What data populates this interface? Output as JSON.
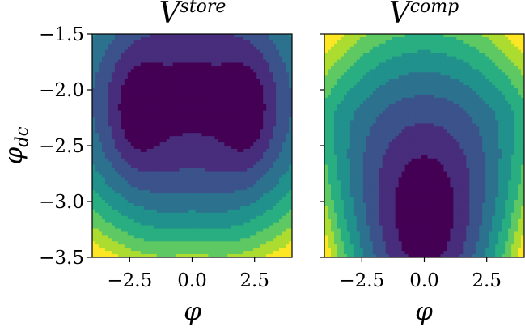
{
  "chart_data": [
    {
      "type": "heatmap",
      "subtype": "filled-contour",
      "title": {
        "base": "V",
        "sup": "store"
      },
      "xlabel": "φ",
      "ylabel": "φ",
      "ylabel_sub": "dc",
      "xlim": [
        -4.0,
        4.0
      ],
      "ylim": [
        -3.5,
        -1.5
      ],
      "xticks": [
        -2.5,
        0.0,
        2.5
      ],
      "xtick_labels": [
        "−2.5",
        "0.0",
        "2.5"
      ],
      "yticks": [
        -1.5,
        -2.0,
        -2.5,
        -3.0,
        -3.5
      ],
      "ytick_labels": [
        "−1.5",
        "−2.0",
        "−2.5",
        "−3.0",
        "−3.5"
      ],
      "colormap": "viridis",
      "contour_levels": 8,
      "minima": [
        {
          "x": -2.3,
          "y": -2.22
        },
        {
          "x": 2.3,
          "y": -2.22
        }
      ]
    },
    {
      "type": "heatmap",
      "subtype": "filled-contour",
      "title": {
        "base": "V",
        "sup": "comp"
      },
      "xlabel": "φ",
      "xlim": [
        -4.0,
        4.0
      ],
      "ylim": [
        -3.5,
        -1.5
      ],
      "xticks": [
        -2.5,
        0.0,
        2.5
      ],
      "xtick_labels": [
        "−2.5",
        "0.0",
        "2.5"
      ],
      "yticks": [
        -1.5,
        -2.0,
        -2.5,
        -3.0,
        -3.5
      ],
      "colormap": "viridis",
      "contour_levels": 8,
      "minima": [
        {
          "x": 0.0,
          "y": -3.1
        }
      ]
    }
  ],
  "colors": {
    "viridis": [
      "#440154",
      "#472d7b",
      "#3b528b",
      "#2c728e",
      "#21918c",
      "#28ae80",
      "#5ec962",
      "#addc30",
      "#fde725"
    ],
    "axes": "#000000"
  }
}
